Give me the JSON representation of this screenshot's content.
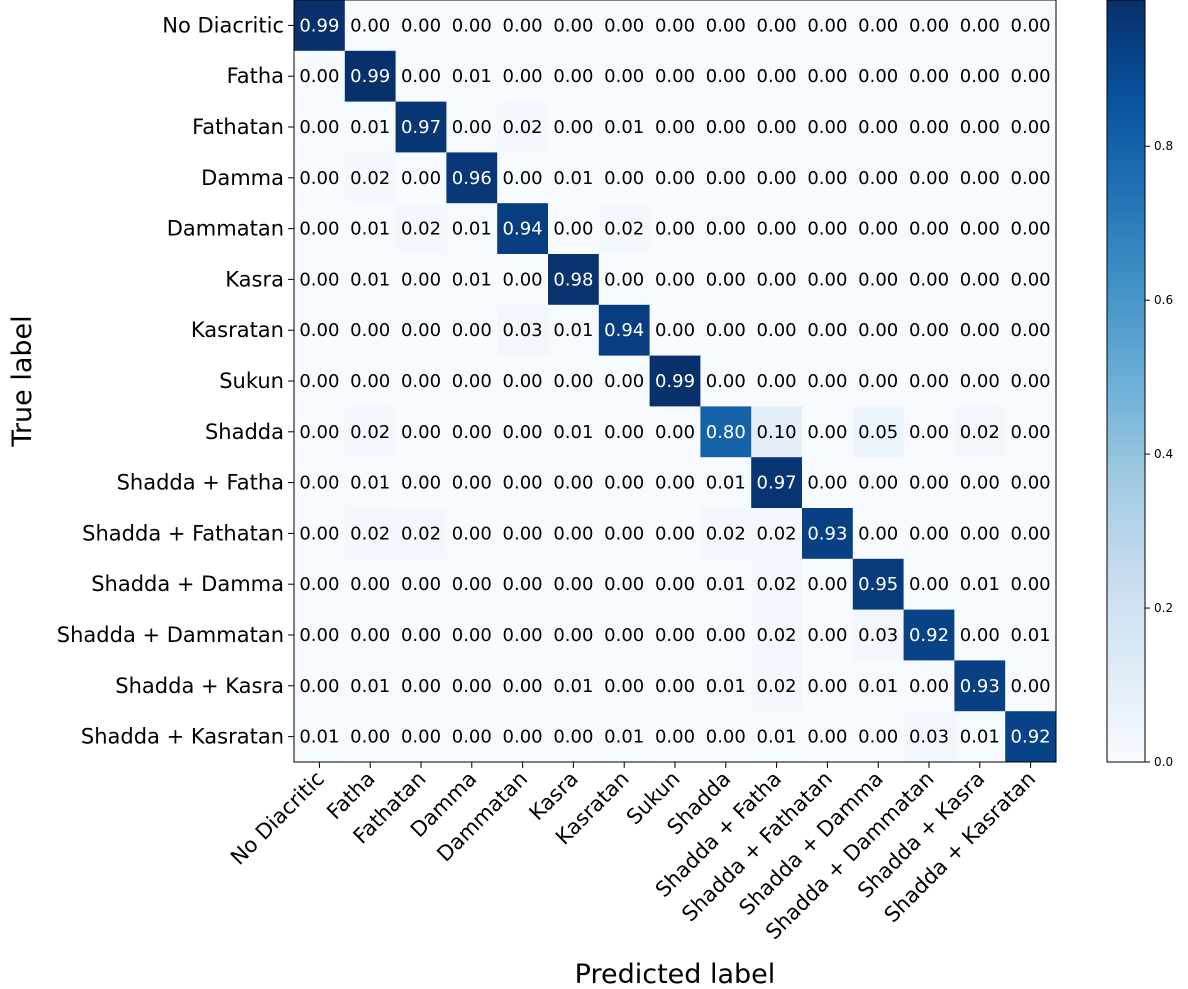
{
  "chart_data": {
    "type": "heatmap",
    "title": "",
    "xlabel": "Predicted label",
    "ylabel": "True label",
    "classes": [
      "No Diacritic",
      "Fatha",
      "Fathatan",
      "Damma",
      "Dammatan",
      "Kasra",
      "Kasratan",
      "Sukun",
      "Shadda",
      "Shadda + Fatha",
      "Shadda + Fathatan",
      "Shadda + Damma",
      "Shadda + Dammatan",
      "Shadda + Kasra",
      "Shadda + Kasratan"
    ],
    "matrix": [
      [
        0.99,
        0.0,
        0.0,
        0.0,
        0.0,
        0.0,
        0.0,
        0.0,
        0.0,
        0.0,
        0.0,
        0.0,
        0.0,
        0.0,
        0.0
      ],
      [
        0.0,
        0.99,
        0.0,
        0.01,
        0.0,
        0.0,
        0.0,
        0.0,
        0.0,
        0.0,
        0.0,
        0.0,
        0.0,
        0.0,
        0.0
      ],
      [
        0.0,
        0.01,
        0.97,
        0.0,
        0.02,
        0.0,
        0.01,
        0.0,
        0.0,
        0.0,
        0.0,
        0.0,
        0.0,
        0.0,
        0.0
      ],
      [
        0.0,
        0.02,
        0.0,
        0.96,
        0.0,
        0.01,
        0.0,
        0.0,
        0.0,
        0.0,
        0.0,
        0.0,
        0.0,
        0.0,
        0.0
      ],
      [
        0.0,
        0.01,
        0.02,
        0.01,
        0.94,
        0.0,
        0.02,
        0.0,
        0.0,
        0.0,
        0.0,
        0.0,
        0.0,
        0.0,
        0.0
      ],
      [
        0.0,
        0.01,
        0.0,
        0.01,
        0.0,
        0.98,
        0.0,
        0.0,
        0.0,
        0.0,
        0.0,
        0.0,
        0.0,
        0.0,
        0.0
      ],
      [
        0.0,
        0.0,
        0.0,
        0.0,
        0.03,
        0.01,
        0.94,
        0.0,
        0.0,
        0.0,
        0.0,
        0.0,
        0.0,
        0.0,
        0.0
      ],
      [
        0.0,
        0.0,
        0.0,
        0.0,
        0.0,
        0.0,
        0.0,
        0.99,
        0.0,
        0.0,
        0.0,
        0.0,
        0.0,
        0.0,
        0.0
      ],
      [
        0.0,
        0.02,
        0.0,
        0.0,
        0.0,
        0.01,
        0.0,
        0.0,
        0.8,
        0.1,
        0.0,
        0.05,
        0.0,
        0.02,
        0.0
      ],
      [
        0.0,
        0.01,
        0.0,
        0.0,
        0.0,
        0.0,
        0.0,
        0.0,
        0.01,
        0.97,
        0.0,
        0.0,
        0.0,
        0.0,
        0.0
      ],
      [
        0.0,
        0.02,
        0.02,
        0.0,
        0.0,
        0.0,
        0.0,
        0.0,
        0.02,
        0.02,
        0.93,
        0.0,
        0.0,
        0.0,
        0.0
      ],
      [
        0.0,
        0.0,
        0.0,
        0.0,
        0.0,
        0.0,
        0.0,
        0.0,
        0.01,
        0.02,
        0.0,
        0.95,
        0.0,
        0.01,
        0.0
      ],
      [
        0.0,
        0.0,
        0.0,
        0.0,
        0.0,
        0.0,
        0.0,
        0.0,
        0.0,
        0.02,
        0.0,
        0.03,
        0.92,
        0.0,
        0.01
      ],
      [
        0.0,
        0.01,
        0.0,
        0.0,
        0.0,
        0.01,
        0.0,
        0.0,
        0.01,
        0.02,
        0.0,
        0.01,
        0.0,
        0.93,
        0.0
      ],
      [
        0.01,
        0.0,
        0.0,
        0.0,
        0.0,
        0.0,
        0.01,
        0.0,
        0.0,
        0.01,
        0.0,
        0.0,
        0.03,
        0.01,
        0.92
      ]
    ],
    "colormap": "Blues",
    "color_range": [
      0.0,
      0.99
    ],
    "colorbar_ticks": [
      "0.0",
      "0.2",
      "0.4",
      "0.6",
      "0.8"
    ],
    "colorbar_tick_values": [
      0.0,
      0.2,
      0.4,
      0.6,
      0.8
    ],
    "text_threshold": 0.5,
    "light_text_color": "#ffffff",
    "dark_text_color": "#000000"
  }
}
